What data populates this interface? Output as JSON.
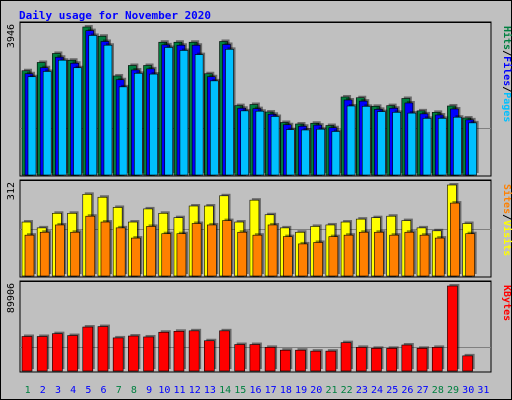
{
  "colors": {
    "hits": "#008040",
    "files": "#0000ff",
    "pages": "#00c0ff",
    "visits": "#ffff00",
    "sites": "#ff8000",
    "kbytes": "#ff0000",
    "weekend_day": "#008040",
    "weekday": "#0000ff",
    "panel_bg": "#c0c0c0",
    "title_color": "#0000ff"
  },
  "chart_data": {
    "type": "bar",
    "title": "Daily usage for November 2020",
    "x": [
      "1",
      "2",
      "3",
      "4",
      "5",
      "6",
      "7",
      "8",
      "9",
      "10",
      "11",
      "12",
      "13",
      "14",
      "15",
      "16",
      "17",
      "18",
      "19",
      "20",
      "21",
      "22",
      "23",
      "24",
      "25",
      "26",
      "27",
      "28",
      "29",
      "30",
      "31"
    ],
    "weekend_days": [
      "1",
      "7",
      "8",
      "14",
      "15",
      "21",
      "22",
      "28",
      "29"
    ],
    "panels": [
      {
        "name": "hits-files-pages",
        "max_label": "3946",
        "ylim": [
          0,
          3946
        ],
        "legend": [
          "Hits",
          "/",
          "Files",
          "/",
          "Pages"
        ],
        "series": [
          {
            "name": "Hits",
            "values": [
              2780,
              3000,
              3240,
              3060,
              3946,
              3700,
              2640,
              2920,
              2920,
              3540,
              3540,
              3540,
              2700,
              3560,
              1850,
              1880,
              1680,
              1400,
              1360,
              1380,
              1320,
              2080,
              2060,
              1830,
              1850,
              2040,
              1710,
              1670,
              1840,
              1520,
              0
            ]
          },
          {
            "name": "Files",
            "values": [
              2700,
              2860,
              3140,
              2980,
              3850,
              3560,
              2540,
              2800,
              2830,
              3470,
              3460,
              3460,
              2620,
              3480,
              1780,
              1770,
              1620,
              1340,
              1300,
              1330,
              1260,
              2000,
              1970,
              1750,
              1780,
              1920,
              1630,
              1600,
              1760,
              1470,
              0
            ]
          },
          {
            "name": "Pages",
            "values": [
              2620,
              2760,
              3060,
              2860,
              3720,
              3460,
              2350,
              2710,
              2690,
              3400,
              3320,
              3210,
              2510,
              3350,
              1710,
              1700,
              1560,
              1210,
              1200,
              1220,
              1160,
              1840,
              1830,
              1690,
              1670,
              1650,
              1510,
              1510,
              1540,
              1390,
              0
            ]
          }
        ]
      },
      {
        "name": "visits-sites",
        "max_label": "312",
        "ylim": [
          0,
          312
        ],
        "legend": [
          "Sites",
          "/",
          "Visits"
        ],
        "series": [
          {
            "name": "Visits",
            "values": [
              185,
              165,
              215,
              215,
              280,
              270,
              235,
              185,
              230,
              215,
              200,
              240,
              240,
              275,
              185,
              260,
              210,
              165,
              150,
              170,
              175,
              185,
              195,
              200,
              205,
              190,
              165,
              155,
              312,
              180,
              0
            ]
          },
          {
            "name": "Sites",
            "values": [
              140,
              150,
              175,
              150,
              205,
              185,
              165,
              130,
              170,
              145,
              145,
              180,
              175,
              190,
              150,
              140,
              175,
              135,
              110,
              115,
              135,
              140,
              150,
              150,
              140,
              150,
              140,
              130,
              250,
              145,
              0
            ]
          }
        ]
      },
      {
        "name": "kbytes",
        "max_label": "89906",
        "ylim": [
          0,
          89906
        ],
        "legend": [
          "KBytes"
        ],
        "series": [
          {
            "name": "KBytes",
            "values": [
              36500,
              36500,
              39500,
              37500,
              46500,
              47000,
              35000,
              37000,
              36000,
              41000,
              42000,
              42500,
              32000,
              42500,
              28000,
              28000,
              25000,
              22000,
              22000,
              21000,
              21000,
              30000,
              25000,
              24000,
              24000,
              27500,
              24000,
              25000,
              89906,
              16000,
              0
            ]
          }
        ]
      }
    ]
  }
}
